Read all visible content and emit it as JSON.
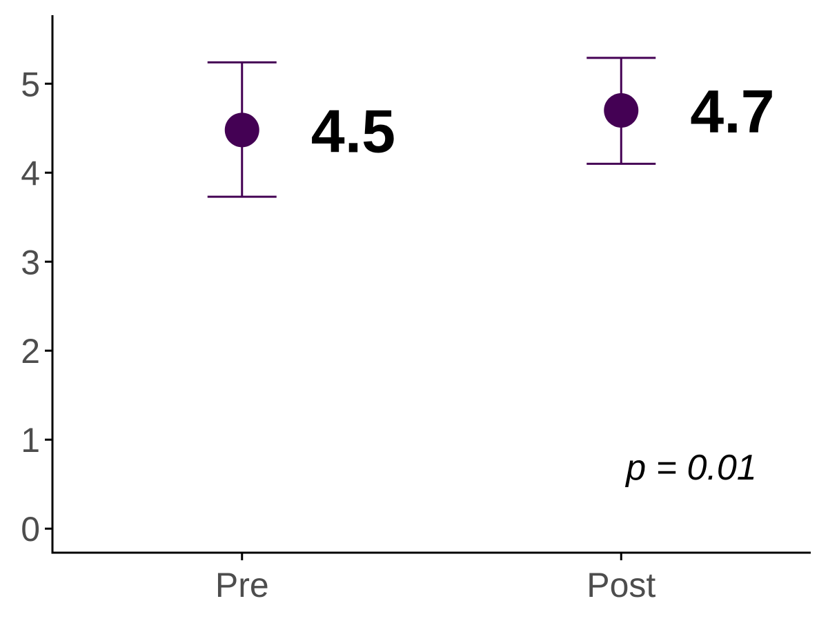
{
  "chart_data": {
    "type": "scatter",
    "categories": [
      "Pre",
      "Post"
    ],
    "points": [
      {
        "category": "Pre",
        "mean": 4.48,
        "lower": 3.73,
        "upper": 5.24,
        "label": "4.5"
      },
      {
        "category": "Post",
        "mean": 4.7,
        "lower": 4.1,
        "upper": 5.29,
        "label": "4.7"
      }
    ],
    "yticks": [
      0,
      1,
      2,
      3,
      4,
      5
    ],
    "ylim": [
      -0.27,
      5.77
    ],
    "annotation": "p =  0.01",
    "colors": {
      "point": "#440154",
      "axis": "#000000",
      "tick_text": "#4d4d4d"
    },
    "grid": false,
    "xlabel": "",
    "ylabel": ""
  }
}
